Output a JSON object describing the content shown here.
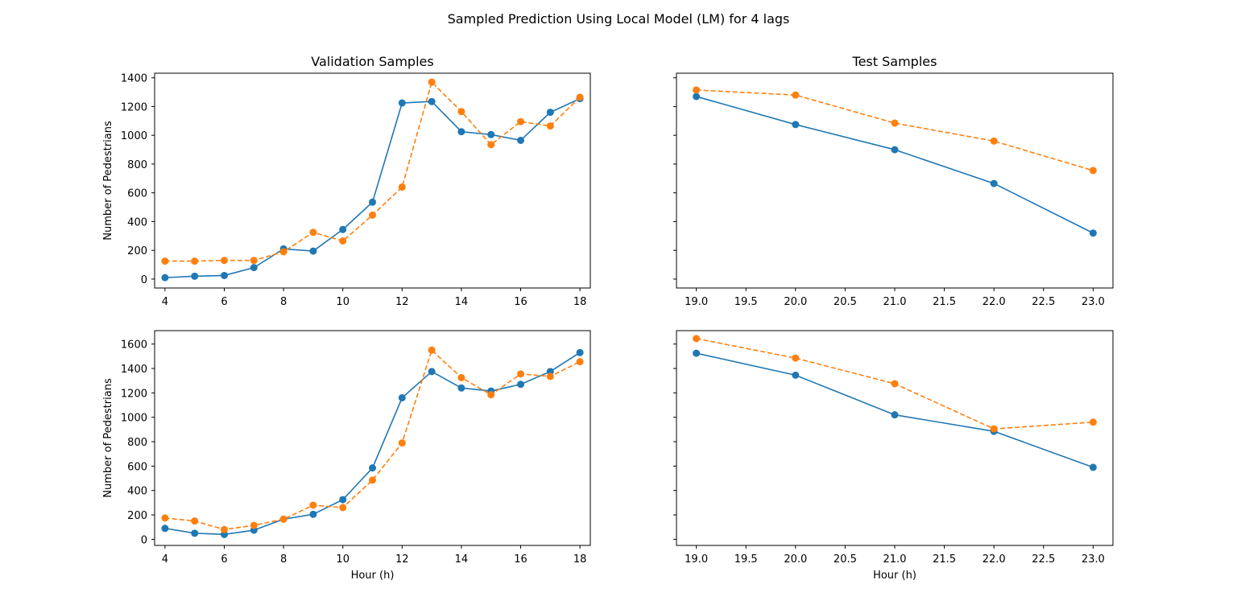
{
  "figure": {
    "title": "Sampled Prediction Using Local Model (LM) for 4 lags"
  },
  "colors": {
    "actual": "#1f77b4",
    "predicted": "#ff7f0e"
  },
  "chart_data": [
    {
      "type": "line",
      "title": "Validation Samples",
      "xlabel": "",
      "ylabel": "Number of Pedestrians",
      "xlim": [
        3.65,
        18.35
      ],
      "ylim": [
        -62,
        1432
      ],
      "xticks": [
        4,
        6,
        8,
        10,
        12,
        14,
        16,
        18
      ],
      "xtick_labels": [
        "4",
        "6",
        "8",
        "10",
        "12",
        "14",
        "16",
        "18"
      ],
      "yticks": [
        0,
        200,
        400,
        600,
        800,
        1000,
        1200,
        1400
      ],
      "ytick_labels": [
        "0",
        "200",
        "400",
        "600",
        "800",
        "1000",
        "1200",
        "1400"
      ],
      "show_ytick_labels": true,
      "x": [
        4,
        5,
        6,
        7,
        8,
        9,
        10,
        11,
        12,
        13,
        14,
        15,
        16,
        17,
        18
      ],
      "series": [
        {
          "style": "solid",
          "values": [
            10,
            20,
            25,
            80,
            210,
            195,
            345,
            535,
            1225,
            1235,
            1025,
            1005,
            965,
            1160,
            1255
          ]
        },
        {
          "style": "dashed",
          "values": [
            125,
            125,
            130,
            130,
            190,
            325,
            265,
            445,
            640,
            1370,
            1165,
            935,
            1095,
            1065,
            1265
          ]
        }
      ]
    },
    {
      "type": "line",
      "title": "Test Samples",
      "xlabel": "",
      "ylabel": "",
      "xlim": [
        18.8,
        23.2
      ],
      "ylim": [
        -62,
        1432
      ],
      "xticks": [
        19.0,
        19.5,
        20.0,
        20.5,
        21.0,
        21.5,
        22.0,
        22.5,
        23.0
      ],
      "xtick_labels": [
        "19.0",
        "19.5",
        "20.0",
        "20.5",
        "21.0",
        "21.5",
        "22.0",
        "22.5",
        "23.0"
      ],
      "yticks": [
        0,
        200,
        400,
        600,
        800,
        1000,
        1200,
        1400
      ],
      "ytick_labels": [],
      "show_ytick_labels": false,
      "x": [
        19,
        20,
        21,
        22,
        23
      ],
      "series": [
        {
          "style": "solid",
          "values": [
            1270,
            1075,
            900,
            665,
            320
          ]
        },
        {
          "style": "dashed",
          "values": [
            1315,
            1280,
            1085,
            960,
            755
          ]
        }
      ]
    },
    {
      "type": "line",
      "title": "",
      "xlabel": "Hour (h)",
      "ylabel": "Number of Pedestrians",
      "xlim": [
        3.65,
        18.35
      ],
      "ylim": [
        -50,
        1710
      ],
      "xticks": [
        4,
        6,
        8,
        10,
        12,
        14,
        16,
        18
      ],
      "xtick_labels": [
        "4",
        "6",
        "8",
        "10",
        "12",
        "14",
        "16",
        "18"
      ],
      "yticks": [
        0,
        200,
        400,
        600,
        800,
        1000,
        1200,
        1400,
        1600
      ],
      "ytick_labels": [
        "0",
        "200",
        "400",
        "600",
        "800",
        "1000",
        "1200",
        "1400",
        "1600"
      ],
      "show_ytick_labels": true,
      "x": [
        4,
        5,
        6,
        7,
        8,
        9,
        10,
        11,
        12,
        13,
        14,
        15,
        16,
        17,
        18
      ],
      "series": [
        {
          "style": "solid",
          "values": [
            90,
            50,
            40,
            75,
            165,
            205,
            325,
            585,
            1160,
            1375,
            1240,
            1215,
            1270,
            1375,
            1530
          ]
        },
        {
          "style": "dashed",
          "values": [
            175,
            150,
            80,
            115,
            165,
            280,
            260,
            485,
            790,
            1550,
            1325,
            1185,
            1355,
            1335,
            1455
          ]
        }
      ]
    },
    {
      "type": "line",
      "title": "",
      "xlabel": "Hour (h)",
      "ylabel": "",
      "xlim": [
        18.8,
        23.2
      ],
      "ylim": [
        -50,
        1710
      ],
      "xticks": [
        19.0,
        19.5,
        20.0,
        20.5,
        21.0,
        21.5,
        22.0,
        22.5,
        23.0
      ],
      "xtick_labels": [
        "19.0",
        "19.5",
        "20.0",
        "20.5",
        "21.0",
        "21.5",
        "22.0",
        "22.5",
        "23.0"
      ],
      "yticks": [
        0,
        200,
        400,
        600,
        800,
        1000,
        1200,
        1400,
        1600
      ],
      "ytick_labels": [],
      "show_ytick_labels": false,
      "x": [
        19,
        20,
        21,
        22,
        23
      ],
      "series": [
        {
          "style": "solid",
          "values": [
            1525,
            1345,
            1020,
            885,
            590
          ]
        },
        {
          "style": "dashed",
          "values": [
            1645,
            1485,
            1275,
            905,
            960
          ]
        }
      ]
    }
  ]
}
